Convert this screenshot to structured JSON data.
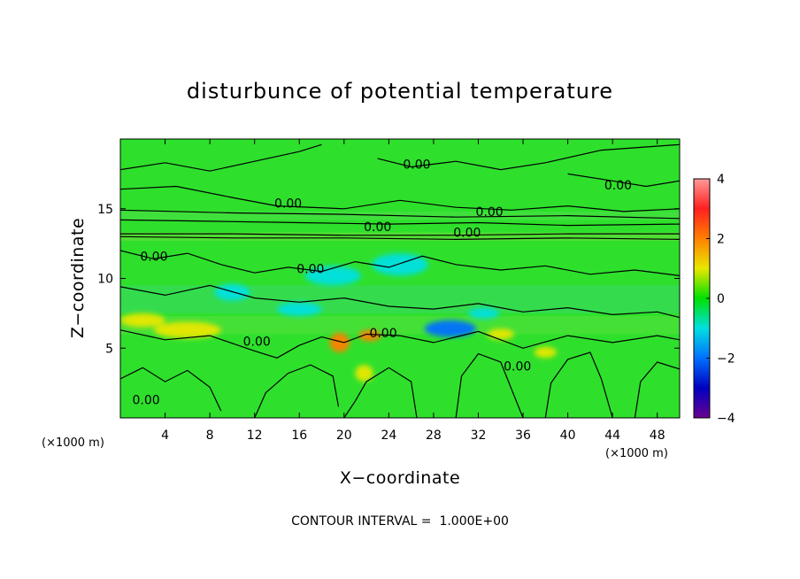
{
  "chart_data": {
    "type": "heatmap",
    "title": "disturbunce of potential temperature",
    "xlabel": "X−coordinate",
    "ylabel": "Z−coordinate",
    "x_unit_left": "(×1000 m)",
    "x_unit_right": "(×1000 m)",
    "xlim": [
      0,
      50
    ],
    "ylim": [
      0,
      20
    ],
    "x_ticks": [
      4,
      8,
      12,
      16,
      20,
      24,
      28,
      32,
      36,
      40,
      44,
      48
    ],
    "x_tick_labels": [
      "4",
      "8",
      "12",
      "16",
      "20",
      "24",
      "28",
      "32",
      "36",
      "40",
      "44",
      "48"
    ],
    "y_ticks": [
      5,
      10,
      15
    ],
    "y_tick_labels": [
      "5",
      "10",
      "15"
    ],
    "colorbar": {
      "range": [
        -4,
        4
      ],
      "ticks": [
        4,
        2,
        0,
        -2,
        -4
      ],
      "tick_labels": [
        "4",
        "2",
        "0",
        "−2",
        "−4"
      ],
      "colors": [
        "#ff9999",
        "#ff2020",
        "#ff8000",
        "#e8e800",
        "#00e000",
        "#00e0e0",
        "#0070ff",
        "#0000c0",
        "#6a0090"
      ]
    },
    "contour_interval": 1.0,
    "contour_labels": [
      {
        "text": "0.00",
        "x": 26.5,
        "y": 18.2
      },
      {
        "text": "0.00",
        "x": 44.5,
        "y": 16.7
      },
      {
        "text": "0.00",
        "x": 15.0,
        "y": 15.4
      },
      {
        "text": "0.00",
        "x": 33.0,
        "y": 14.8
      },
      {
        "text": "0.00",
        "x": 23.0,
        "y": 13.7
      },
      {
        "text": "0.00",
        "x": 31.0,
        "y": 13.3
      },
      {
        "text": "0.00",
        "x": 3.0,
        "y": 11.6
      },
      {
        "text": "0.00",
        "x": 17.0,
        "y": 10.7
      },
      {
        "text": "0.00",
        "x": 23.5,
        "y": 6.1
      },
      {
        "text": "0.00",
        "x": 12.2,
        "y": 5.5
      },
      {
        "text": "0.00",
        "x": 35.5,
        "y": 3.7
      },
      {
        "text": "0.00",
        "x": 2.3,
        "y": 1.3
      }
    ],
    "features": [
      {
        "value": 1.0,
        "x": 2.0,
        "y": 7.0,
        "rx": 2.0,
        "ry": 0.5
      },
      {
        "value": 1.2,
        "x": 6.0,
        "y": 6.3,
        "rx": 3.0,
        "ry": 0.6
      },
      {
        "value": 2.0,
        "x": 19.6,
        "y": 5.4,
        "rx": 0.9,
        "ry": 0.7
      },
      {
        "value": 2.0,
        "x": 22.3,
        "y": 5.9,
        "rx": 1.0,
        "ry": 0.4
      },
      {
        "value": 1.3,
        "x": 21.8,
        "y": 3.2,
        "rx": 0.8,
        "ry": 0.6
      },
      {
        "value": 1.0,
        "x": 34.0,
        "y": 6.0,
        "rx": 1.2,
        "ry": 0.4
      },
      {
        "value": 1.0,
        "x": 38.0,
        "y": 4.7,
        "rx": 1.0,
        "ry": 0.4
      },
      {
        "value": -1.3,
        "x": 10.0,
        "y": 9.0,
        "rx": 1.6,
        "ry": 0.6
      },
      {
        "value": -1.0,
        "x": 16.0,
        "y": 7.8,
        "rx": 2.0,
        "ry": 0.5
      },
      {
        "value": -1.8,
        "x": 29.5,
        "y": 6.4,
        "rx": 2.3,
        "ry": 0.6
      },
      {
        "value": -1.0,
        "x": 32.5,
        "y": 7.5,
        "rx": 1.4,
        "ry": 0.4
      },
      {
        "value": -0.7,
        "x": 25.0,
        "y": 11.0,
        "rx": 2.5,
        "ry": 0.8
      },
      {
        "value": -0.6,
        "x": 19.0,
        "y": 10.2,
        "rx": 2.5,
        "ry": 0.7
      }
    ],
    "contour_paths": [
      [
        [
          0,
          17.8
        ],
        [
          4,
          18.3
        ],
        [
          8,
          17.7
        ],
        [
          12,
          18.4
        ],
        [
          16,
          19.1
        ],
        [
          18,
          19.6
        ]
      ],
      [
        [
          23,
          18.6
        ],
        [
          26,
          18.0
        ],
        [
          30,
          18.4
        ],
        [
          34,
          17.8
        ],
        [
          38,
          18.3
        ],
        [
          43,
          19.2
        ],
        [
          50,
          19.6
        ]
      ],
      [
        [
          40,
          17.5
        ],
        [
          44,
          17.0
        ],
        [
          47,
          16.6
        ],
        [
          50,
          17.0
        ]
      ],
      [
        [
          0,
          16.4
        ],
        [
          5,
          16.6
        ],
        [
          10,
          15.8
        ],
        [
          14,
          15.2
        ],
        [
          20,
          15.0
        ],
        [
          25,
          15.6
        ],
        [
          30,
          15.1
        ],
        [
          35,
          14.9
        ],
        [
          40,
          15.2
        ],
        [
          45,
          14.8
        ],
        [
          50,
          15.0
        ]
      ],
      [
        [
          0,
          14.9
        ],
        [
          10,
          14.7
        ],
        [
          20,
          14.6
        ],
        [
          30,
          14.4
        ],
        [
          40,
          14.5
        ],
        [
          50,
          14.3
        ]
      ],
      [
        [
          0,
          14.2
        ],
        [
          8,
          14.1
        ],
        [
          16,
          14.0
        ],
        [
          24,
          13.9
        ],
        [
          32,
          14.0
        ],
        [
          40,
          13.8
        ],
        [
          50,
          13.9
        ]
      ],
      [
        [
          0,
          13.2
        ],
        [
          10,
          13.2
        ],
        [
          20,
          13.1
        ],
        [
          30,
          13.1
        ],
        [
          40,
          13.2
        ],
        [
          50,
          13.2
        ]
      ],
      [
        [
          0,
          13.0
        ],
        [
          10,
          12.9
        ],
        [
          20,
          12.9
        ],
        [
          30,
          12.8
        ],
        [
          40,
          12.9
        ],
        [
          50,
          12.8
        ]
      ],
      [
        [
          0,
          12.0
        ],
        [
          3,
          11.4
        ],
        [
          6,
          11.8
        ],
        [
          9,
          11.0
        ],
        [
          12,
          10.4
        ],
        [
          15,
          10.8
        ],
        [
          18,
          10.5
        ],
        [
          21,
          11.2
        ],
        [
          24,
          10.8
        ],
        [
          27,
          11.6
        ],
        [
          30,
          11.0
        ],
        [
          34,
          10.6
        ],
        [
          38,
          10.9
        ],
        [
          42,
          10.3
        ],
        [
          46,
          10.6
        ],
        [
          50,
          10.2
        ]
      ],
      [
        [
          0,
          9.4
        ],
        [
          4,
          8.8
        ],
        [
          8,
          9.5
        ],
        [
          12,
          8.6
        ],
        [
          16,
          8.3
        ],
        [
          20,
          8.6
        ],
        [
          24,
          8.0
        ],
        [
          28,
          7.8
        ],
        [
          32,
          8.2
        ],
        [
          36,
          7.6
        ],
        [
          40,
          7.9
        ],
        [
          44,
          7.4
        ],
        [
          48,
          7.6
        ],
        [
          50,
          7.2
        ]
      ],
      [
        [
          0,
          6.3
        ],
        [
          4,
          5.6
        ],
        [
          8,
          5.9
        ],
        [
          12,
          4.8
        ],
        [
          14,
          4.3
        ],
        [
          16,
          5.2
        ],
        [
          18,
          5.8
        ],
        [
          20,
          5.4
        ],
        [
          22,
          6.0
        ],
        [
          25,
          5.9
        ],
        [
          28,
          5.4
        ],
        [
          32,
          6.2
        ],
        [
          36,
          5.0
        ],
        [
          40,
          5.9
        ],
        [
          44,
          5.4
        ],
        [
          48,
          5.9
        ],
        [
          50,
          5.6
        ]
      ],
      [
        [
          0,
          2.8
        ],
        [
          2,
          3.6
        ],
        [
          4,
          2.6
        ],
        [
          6,
          3.4
        ],
        [
          8,
          2.2
        ],
        [
          9,
          0.5
        ]
      ],
      [
        [
          12,
          0
        ],
        [
          13,
          1.8
        ],
        [
          15,
          3.2
        ],
        [
          17,
          3.8
        ],
        [
          19,
          3.0
        ],
        [
          19.5,
          0.8
        ]
      ],
      [
        [
          20,
          0
        ],
        [
          21,
          1.2
        ],
        [
          22,
          2.6
        ],
        [
          24,
          3.6
        ],
        [
          26,
          2.6
        ],
        [
          26.5,
          0
        ]
      ],
      [
        [
          30,
          0
        ],
        [
          30.5,
          3.0
        ],
        [
          32,
          4.6
        ],
        [
          34,
          4.0
        ],
        [
          35,
          2.0
        ],
        [
          36,
          0
        ]
      ],
      [
        [
          38,
          0
        ],
        [
          38.5,
          2.5
        ],
        [
          40,
          4.2
        ],
        [
          42,
          4.7
        ],
        [
          43,
          2.8
        ],
        [
          44,
          0
        ]
      ],
      [
        [
          46,
          0
        ],
        [
          46.5,
          2.6
        ],
        [
          48,
          4.0
        ],
        [
          50,
          3.5
        ]
      ]
    ]
  },
  "footer": {
    "contour_interval_label": "CONTOUR INTERVAL =  1.000E+00"
  }
}
